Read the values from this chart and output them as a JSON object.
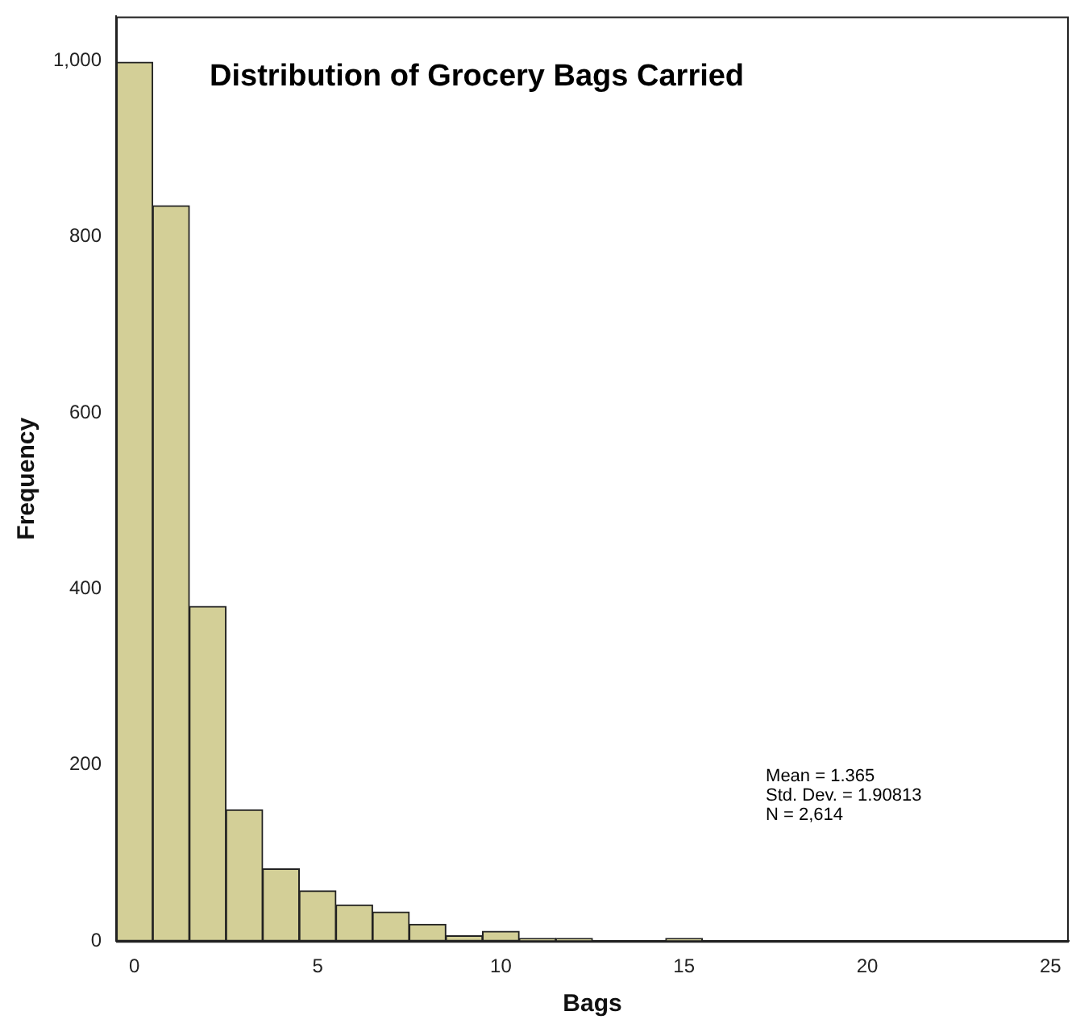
{
  "chart_data": {
    "type": "histogram",
    "title": "Distribution of Grocery Bags Carried",
    "xlabel": "Bags",
    "ylabel": "Frequency",
    "bins": [
      -0.5,
      0.5,
      1.5,
      2.5,
      3.5,
      4.5,
      5.5,
      6.5,
      7.5,
      8.5,
      9.5,
      10.5,
      11.5,
      12.5,
      13.5,
      14.5,
      15.5,
      16.5,
      17.5,
      18.5,
      19.5,
      20.5,
      21.5,
      22.5,
      23.5,
      24.5,
      25.5
    ],
    "values": [
      998,
      835,
      380,
      149,
      82,
      57,
      41,
      33,
      19,
      6,
      11,
      3,
      3,
      null,
      0,
      3,
      0,
      0,
      0,
      0,
      0,
      0,
      0,
      0,
      0,
      null
    ],
    "color": "#d3cf97",
    "xlim": [
      -0.5,
      25.5
    ],
    "xticks": [
      0,
      5,
      10,
      15,
      20,
      25
    ],
    "ylim": [
      0,
      1050
    ],
    "yticks": [
      0,
      200,
      400,
      600,
      800,
      {
        "value": 1000,
        "label": "1,000"
      }
    ],
    "grid": false,
    "legend": false,
    "annotations": [
      "Mean = 1.365",
      "Std. Dev. = 1.90813",
      "N = 2,614"
    ]
  }
}
